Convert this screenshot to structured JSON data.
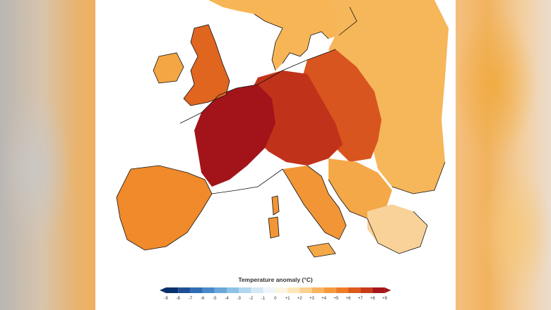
{
  "map": {
    "regions": [
      {
        "name": "region-france-core",
        "color": "#a3141a"
      },
      {
        "name": "region-germany",
        "color": "#c1321b"
      },
      {
        "name": "region-poland",
        "color": "#d9551f"
      },
      {
        "name": "region-britain",
        "color": "#e0651f"
      },
      {
        "name": "region-iberia",
        "color": "#f08a2a"
      },
      {
        "name": "region-italy",
        "color": "#f19536"
      },
      {
        "name": "region-balkans",
        "color": "#f5a848"
      },
      {
        "name": "region-scandinavia",
        "color": "#f8b556"
      },
      {
        "name": "region-east",
        "color": "#f6b65a"
      },
      {
        "name": "region-greece",
        "color": "#f9d29a"
      }
    ]
  },
  "legend": {
    "title": "Temperature anomaly (°C)",
    "ticks": [
      "-9",
      "-8",
      "-7",
      "-6",
      "-5",
      "-4",
      "-3",
      "-2",
      "-1",
      "0",
      "+1",
      "+2",
      "+3",
      "+4",
      "+5",
      "+6",
      "+7",
      "+8",
      "+9"
    ],
    "colors": [
      "#08306b",
      "#1f4e96",
      "#2f6cb4",
      "#4a8ac8",
      "#6aa7d8",
      "#8dc2e6",
      "#b3d7ee",
      "#d4e8f5",
      "#eef6fb",
      "#fdf5e1",
      "#fde6b8",
      "#fcd191",
      "#f9b45f",
      "#f59a3c",
      "#ee7d2a",
      "#dd5a1e",
      "#c63a17",
      "#a4161a"
    ],
    "low_arrow_color": "#08306b",
    "high_arrow_color": "#a4161a"
  }
}
